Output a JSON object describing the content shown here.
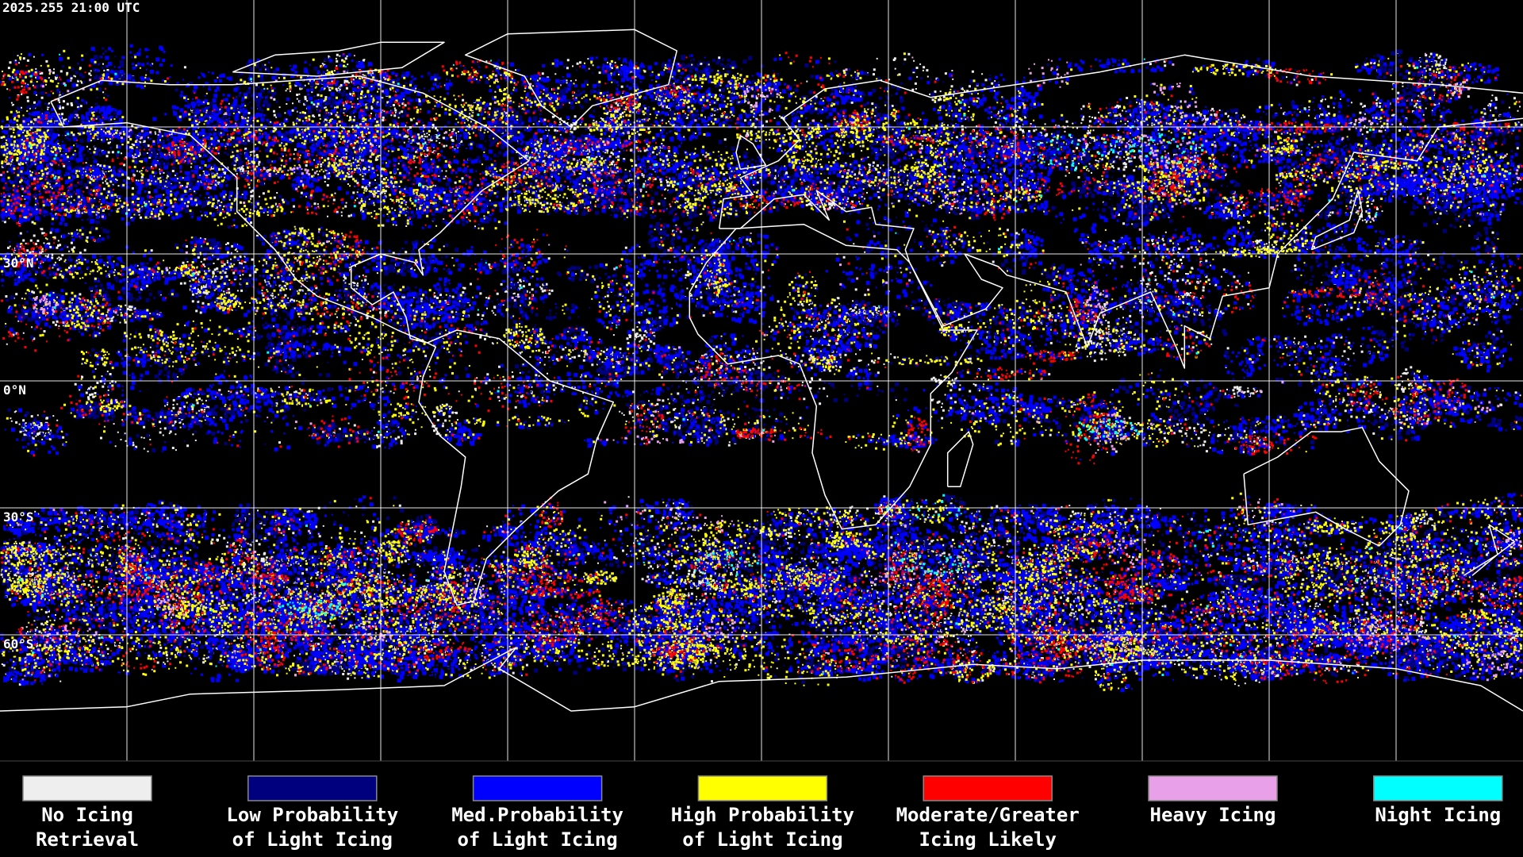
{
  "header": {
    "timestamp": "2025.255 21:00 UTC"
  },
  "lat_labels": [
    "30°N",
    "0°N",
    "30°S",
    "60°S"
  ],
  "legend": [
    {
      "label": [
        "No Icing",
        "Retrieval"
      ],
      "color": "#eeeeee"
    },
    {
      "label": [
        "Low Probability",
        "of Light Icing"
      ],
      "color": "#00007f"
    },
    {
      "label": [
        "Med.Probability",
        "of Light Icing"
      ],
      "color": "#0000ff"
    },
    {
      "label": [
        "High Probability",
        "of Light Icing"
      ],
      "color": "#ffff00"
    },
    {
      "label": [
        "Moderate/Greater",
        "Icing Likely"
      ],
      "color": "#ff0000"
    },
    {
      "label": [
        "Heavy Icing"
      ],
      "color": "#e8a0e8"
    },
    {
      "label": [
        "Night Icing"
      ],
      "color": "#00ffff"
    }
  ]
}
